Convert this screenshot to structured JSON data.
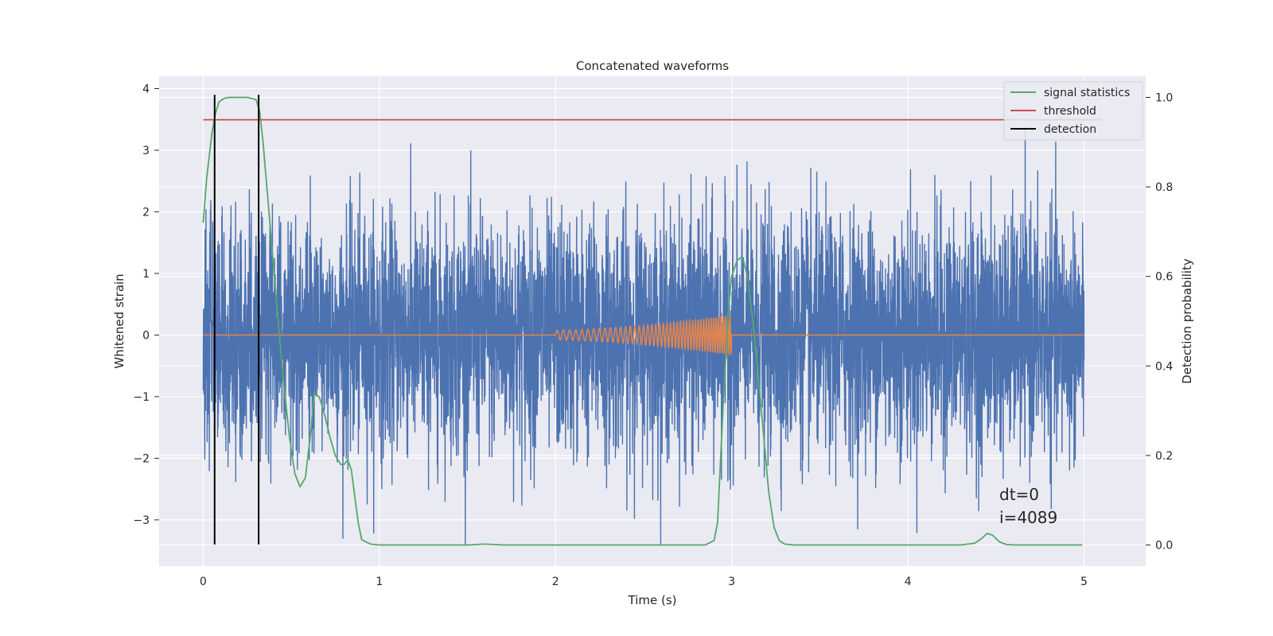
{
  "chart_data": {
    "type": "line",
    "title": "Concatenated waveforms",
    "xlabel": "Time (s)",
    "ylabel": "Whitened strain",
    "y2label": "Detection probability",
    "xlim": [
      -0.25,
      5.35
    ],
    "ylim": [
      -3.75,
      4.2
    ],
    "y2lim": [
      -0.047,
      1.047
    ],
    "xticks": [
      "0",
      "1",
      "2",
      "3",
      "4",
      "5"
    ],
    "yticks": [
      "−3",
      "−2",
      "−1",
      "0",
      "1",
      "2",
      "3",
      "4"
    ],
    "y2ticks": [
      "0.0",
      "0.2",
      "0.4",
      "0.6",
      "0.8",
      "1.0"
    ],
    "grid": true,
    "legend_position": "top-right",
    "annotations": [
      "dt=0",
      "i=4089"
    ],
    "series": [
      {
        "name": "",
        "axis": "left",
        "color": "#4c72b0",
        "kind": "noise",
        "x_range": [
          0,
          5
        ],
        "sigma": 0.95,
        "max": 3.85,
        "min": -3.4
      },
      {
        "name": "",
        "axis": "left",
        "color": "#dd8452",
        "kind": "chirp",
        "x": [
          0,
          2,
          3,
          5
        ],
        "y": [
          0,
          0,
          0,
          0
        ],
        "chirp_start": 2.0,
        "chirp_end": 3.0,
        "amplitude_start": 0.08,
        "amplitude_end": 0.32
      },
      {
        "name": "signal statistics",
        "axis": "right",
        "color": "#55a868",
        "x": [
          0.0,
          0.02,
          0.05,
          0.07,
          0.09,
          0.12,
          0.15,
          0.2,
          0.25,
          0.3,
          0.32,
          0.34,
          0.37,
          0.4,
          0.43,
          0.46,
          0.49,
          0.52,
          0.55,
          0.58,
          0.61,
          0.63,
          0.66,
          0.69,
          0.72,
          0.75,
          0.78,
          0.8,
          0.82,
          0.84,
          0.86,
          0.88,
          0.9,
          0.95,
          1.0,
          1.5,
          1.6,
          1.7,
          2.0,
          2.5,
          2.85,
          2.9,
          2.92,
          2.95,
          2.98,
          3.0,
          3.03,
          3.06,
          3.09,
          3.12,
          3.15,
          3.18,
          3.21,
          3.24,
          3.27,
          3.3,
          3.35,
          3.5,
          4.0,
          4.3,
          4.38,
          4.42,
          4.45,
          4.48,
          4.52,
          4.56,
          4.6,
          4.7,
          4.99
        ],
        "y": [
          0.72,
          0.82,
          0.92,
          0.965,
          0.99,
          0.998,
          1.0,
          1.0,
          1.0,
          0.995,
          0.97,
          0.9,
          0.76,
          0.62,
          0.48,
          0.35,
          0.24,
          0.16,
          0.13,
          0.15,
          0.25,
          0.34,
          0.33,
          0.29,
          0.24,
          0.2,
          0.18,
          0.18,
          0.19,
          0.17,
          0.11,
          0.05,
          0.012,
          0.002,
          0.0,
          0.0,
          0.002,
          0.0,
          0.0,
          0.0,
          0.0,
          0.01,
          0.05,
          0.3,
          0.52,
          0.6,
          0.635,
          0.645,
          0.6,
          0.5,
          0.38,
          0.25,
          0.12,
          0.04,
          0.01,
          0.002,
          0.0,
          0.0,
          0.0,
          0.0,
          0.004,
          0.015,
          0.026,
          0.022,
          0.007,
          0.001,
          0.0,
          0.0,
          0.0
        ]
      },
      {
        "name": "threshold",
        "axis": "right",
        "color": "#c44e52",
        "x": [
          0,
          5.1
        ],
        "y": [
          0.95,
          0.95
        ]
      },
      {
        "name": "detection",
        "axis": "left",
        "color": "#000000",
        "kind": "vlines",
        "x": [
          0.065,
          0.315
        ],
        "y_from": -3.4,
        "y_to": 3.9
      }
    ]
  }
}
